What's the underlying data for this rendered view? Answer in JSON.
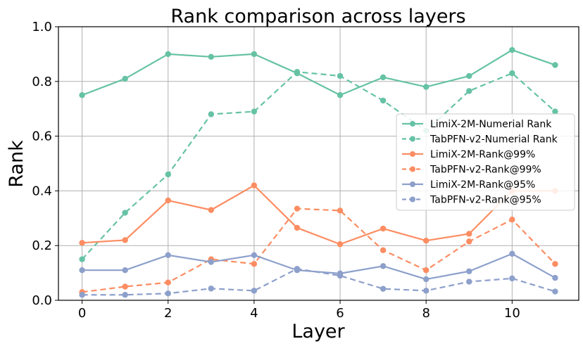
{
  "chart_data": {
    "type": "line",
    "title": "Rank comparison across layers",
    "xlabel": "Layer",
    "ylabel": "Rank",
    "xlim": [
      -0.55,
      11.55
    ],
    "ylim": [
      0.0,
      1.0
    ],
    "xticks": [
      0,
      2,
      4,
      6,
      8,
      10
    ],
    "yticks": [
      0.0,
      0.2,
      0.4,
      0.6,
      0.8,
      1.0
    ],
    "xtick_labels": [
      "0",
      "2",
      "4",
      "6",
      "8",
      "10"
    ],
    "ytick_labels": [
      "0.0",
      "0.2",
      "0.4",
      "0.6",
      "0.8",
      "1.0"
    ],
    "grid": true,
    "legend_position": "center-right",
    "x": [
      0,
      1,
      2,
      3,
      4,
      5,
      6,
      7,
      8,
      9,
      10,
      11
    ],
    "series": [
      {
        "name": "LimiX-2M-Numerial Rank",
        "color": "#66c2a5",
        "dashed": false,
        "values": [
          0.75,
          0.81,
          0.9,
          0.89,
          0.9,
          0.83,
          0.75,
          0.815,
          0.78,
          0.82,
          0.915,
          0.86
        ]
      },
      {
        "name": "TabPFN-v2-Numerial Rank",
        "color": "#66c2a5",
        "dashed": true,
        "values": [
          0.15,
          0.32,
          0.46,
          0.68,
          0.69,
          0.835,
          0.82,
          0.73,
          0.62,
          0.765,
          0.83,
          0.69
        ]
      },
      {
        "name": "LimiX-2M-Rank@99%",
        "color": "#fc8d62",
        "dashed": false,
        "values": [
          0.21,
          0.22,
          0.365,
          0.33,
          0.42,
          0.265,
          0.205,
          0.262,
          0.218,
          0.243,
          0.4,
          0.4
        ]
      },
      {
        "name": "TabPFN-v2-Rank@99%",
        "color": "#fc8d62",
        "dashed": true,
        "values": [
          0.03,
          0.05,
          0.065,
          0.15,
          0.133,
          0.335,
          0.328,
          0.183,
          0.11,
          0.215,
          0.295,
          0.133
        ]
      },
      {
        "name": "LimiX-2M-Rank@95%",
        "color": "#8da0cb",
        "dashed": false,
        "values": [
          0.11,
          0.11,
          0.165,
          0.14,
          0.165,
          0.11,
          0.098,
          0.125,
          0.077,
          0.106,
          0.17,
          0.082
        ]
      },
      {
        "name": "TabPFN-v2-Rank@95%",
        "color": "#8da0cb",
        "dashed": true,
        "values": [
          0.02,
          0.02,
          0.025,
          0.043,
          0.035,
          0.115,
          0.09,
          0.042,
          0.035,
          0.068,
          0.08,
          0.032
        ]
      }
    ]
  }
}
